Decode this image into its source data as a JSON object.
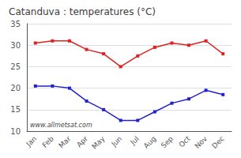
{
  "chart_data": {
    "type": "line",
    "title": "Catanduva : temperatures (°C)",
    "categories": [
      "Jan",
      "Feb",
      "Mar",
      "Apr",
      "May",
      "Jun",
      "Jul",
      "Aug",
      "Sep",
      "Oct",
      "Nov",
      "Dec"
    ],
    "series": [
      {
        "color": "#dd2222",
        "values": [
          30.5,
          31.0,
          31.0,
          29.0,
          28.0,
          25.0,
          27.5,
          29.5,
          30.5,
          30.0,
          31.0,
          28.0
        ]
      },
      {
        "color": "#2222cc",
        "values": [
          20.5,
          20.5,
          20.0,
          17.0,
          15.0,
          12.5,
          12.5,
          14.5,
          16.5,
          17.5,
          19.5,
          18.5
        ]
      }
    ],
    "ylim": [
      10,
      35
    ],
    "yticks": [
      10,
      15,
      20,
      25,
      30,
      35
    ],
    "grid": true,
    "marker": "square",
    "annotation": "www.allmetsat.com"
  }
}
